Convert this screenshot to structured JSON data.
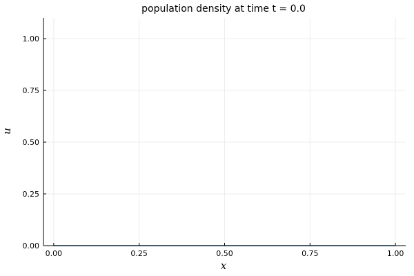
{
  "chart_data": {
    "type": "line",
    "title": "population density at time t = 0.0",
    "xlabel": "x",
    "ylabel": "u",
    "xlim": [
      -0.03,
      1.03
    ],
    "ylim": [
      0.0,
      1.1
    ],
    "x_ticks": [
      0.0,
      0.25,
      0.5,
      0.75,
      1.0
    ],
    "x_tick_labels": [
      "0.00",
      "0.25",
      "0.50",
      "0.75",
      "1.00"
    ],
    "y_ticks": [
      0.0,
      0.25,
      0.5,
      0.75,
      1.0
    ],
    "y_tick_labels": [
      "0.00",
      "0.25",
      "0.50",
      "0.75",
      "1.00"
    ],
    "grid": true,
    "legend": "none",
    "colors": {
      "series": "#1f77a4",
      "grid": "#ececec",
      "axis": "#000000"
    },
    "series": [
      {
        "x": [
          0.0,
          0.1,
          0.2,
          0.3,
          0.4,
          0.5,
          0.6,
          0.7,
          0.8,
          0.9,
          1.0
        ],
        "y": [
          0.0,
          0.0,
          0.0,
          0.0,
          0.0,
          0.0,
          0.0,
          0.0,
          0.0,
          0.0,
          0.0
        ]
      }
    ]
  }
}
